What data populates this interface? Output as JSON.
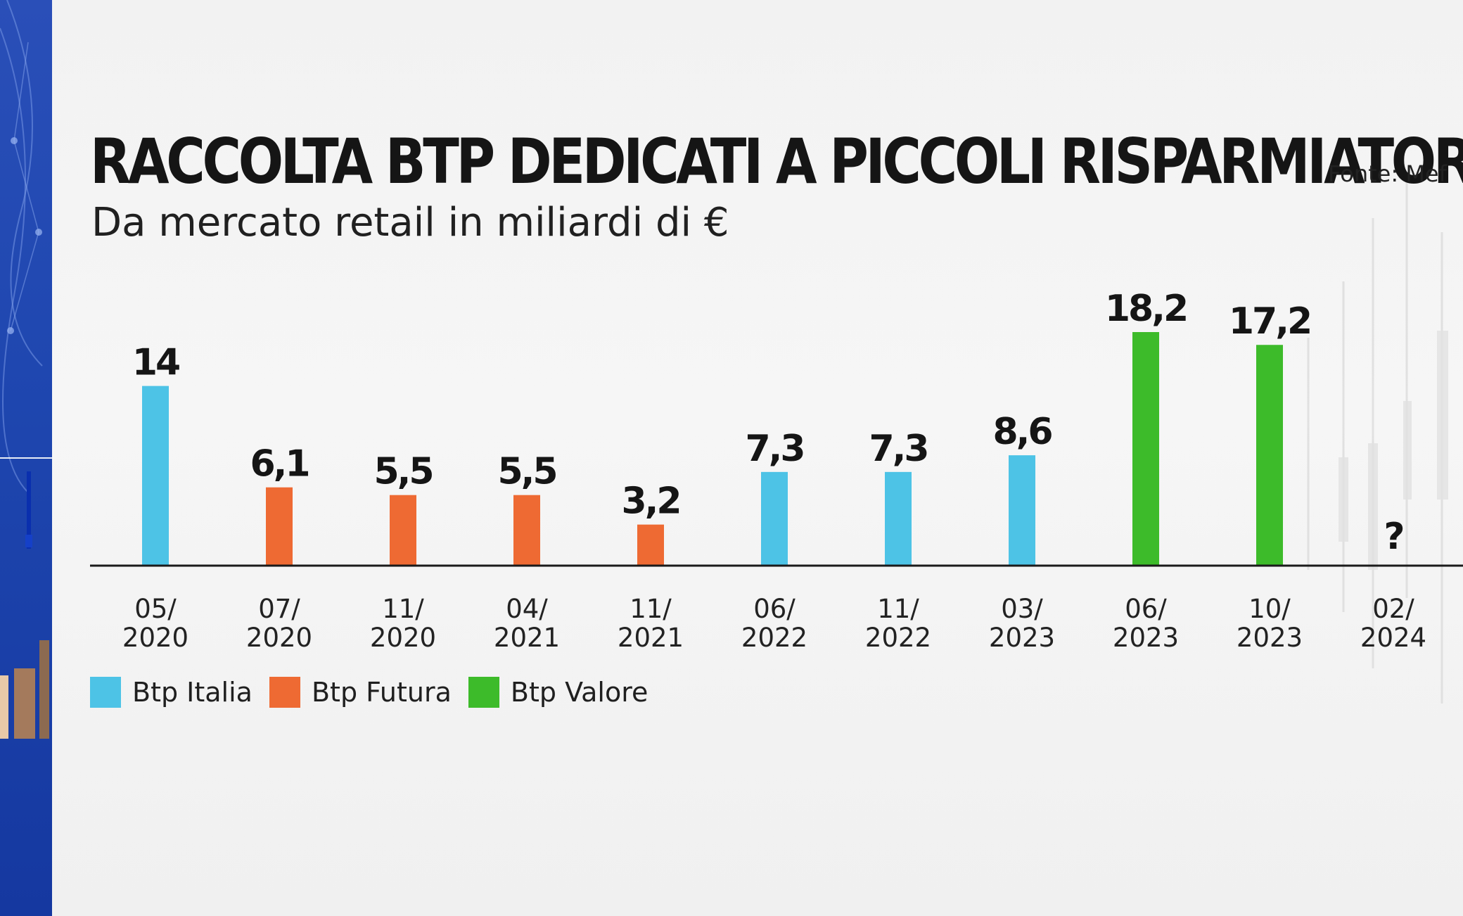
{
  "header": {
    "title": "RACCOLTA BTP DEDICATI A PICCOLI RISPARMIATORI",
    "subtitle": "Da mercato retail in miliardi di €",
    "source": "Fonte: Mef"
  },
  "colors": {
    "Btp Italia": "#4dc3e6",
    "Btp Futura": "#ee6a33",
    "Btp Valore": "#3dbb2a",
    "axis": "#1a1a1a"
  },
  "legend": [
    {
      "name": "Btp Italia",
      "color": "#4dc3e6"
    },
    {
      "name": "Btp Futura",
      "color": "#ee6a33"
    },
    {
      "name": "Btp Valore",
      "color": "#3dbb2a"
    }
  ],
  "chart_data": {
    "type": "bar",
    "title": "RACCOLTA BTP DEDICATI A PICCOLI RISPARMIATORI",
    "subtitle": "Da mercato retail in miliardi di €",
    "categories": [
      "05/ 2020",
      "07/ 2020",
      "11/ 2020",
      "04/ 2021",
      "11/ 2021",
      "06/ 2022",
      "11/ 2022",
      "03/ 2023",
      "06/ 2023",
      "10/ 2023",
      "02/ 2024"
    ],
    "category_lines": [
      [
        "05/",
        "2020"
      ],
      [
        "07/",
        "2020"
      ],
      [
        "11/",
        "2020"
      ],
      [
        "04/",
        "2021"
      ],
      [
        "11/",
        "2021"
      ],
      [
        "06/",
        "2022"
      ],
      [
        "11/",
        "2022"
      ],
      [
        "03/",
        "2023"
      ],
      [
        "06/",
        "2023"
      ],
      [
        "10/",
        "2023"
      ],
      [
        "02/",
        "2024"
      ]
    ],
    "values": [
      14,
      6.1,
      5.5,
      5.5,
      3.2,
      7.3,
      7.3,
      8.6,
      18.2,
      17.2,
      null
    ],
    "value_labels": [
      "14",
      "6,1",
      "5,5",
      "5,5",
      "3,2",
      "7,3",
      "7,3",
      "8,6",
      "18,2",
      "17,2",
      "?"
    ],
    "series_by_bar": [
      "Btp Italia",
      "Btp Futura",
      "Btp Futura",
      "Btp Futura",
      "Btp Futura",
      "Btp Italia",
      "Btp Italia",
      "Btp Italia",
      "Btp Valore",
      "Btp Valore",
      null
    ],
    "series": [
      "Btp Italia",
      "Btp Futura",
      "Btp Valore"
    ],
    "ylim": [
      0,
      18.2
    ],
    "grid": false,
    "legend_position": "bottom-left",
    "xlabel": "",
    "ylabel": ""
  }
}
